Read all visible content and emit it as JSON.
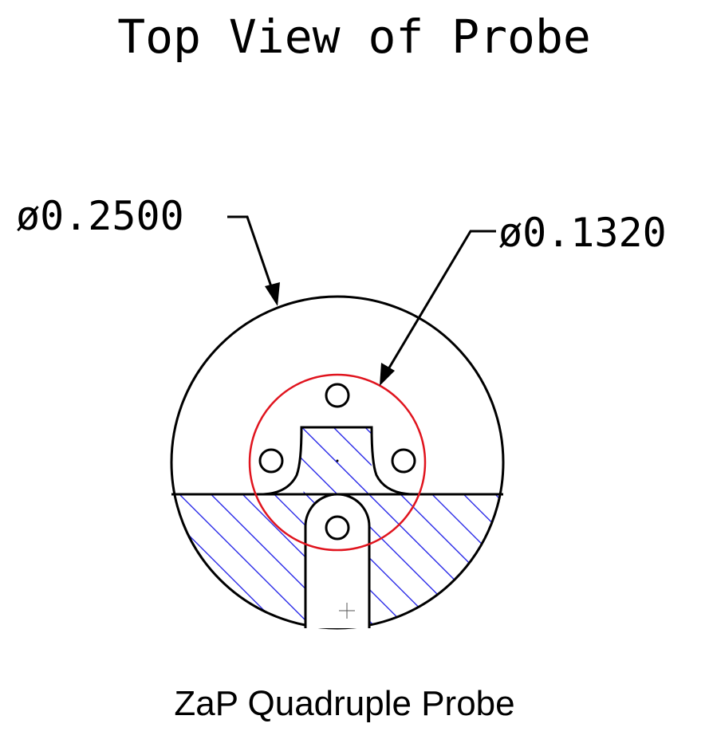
{
  "title": "Top View of Probe",
  "caption": "ZaP Quadruple Probe",
  "dimensions": {
    "outer_diameter": "ø0.2500",
    "inner_diameter": "ø0.1320"
  },
  "colors": {
    "outline": "#000000",
    "bolt_circle": "#e0141e",
    "hatch": "#1a1ae6",
    "background": "#ffffff"
  }
}
